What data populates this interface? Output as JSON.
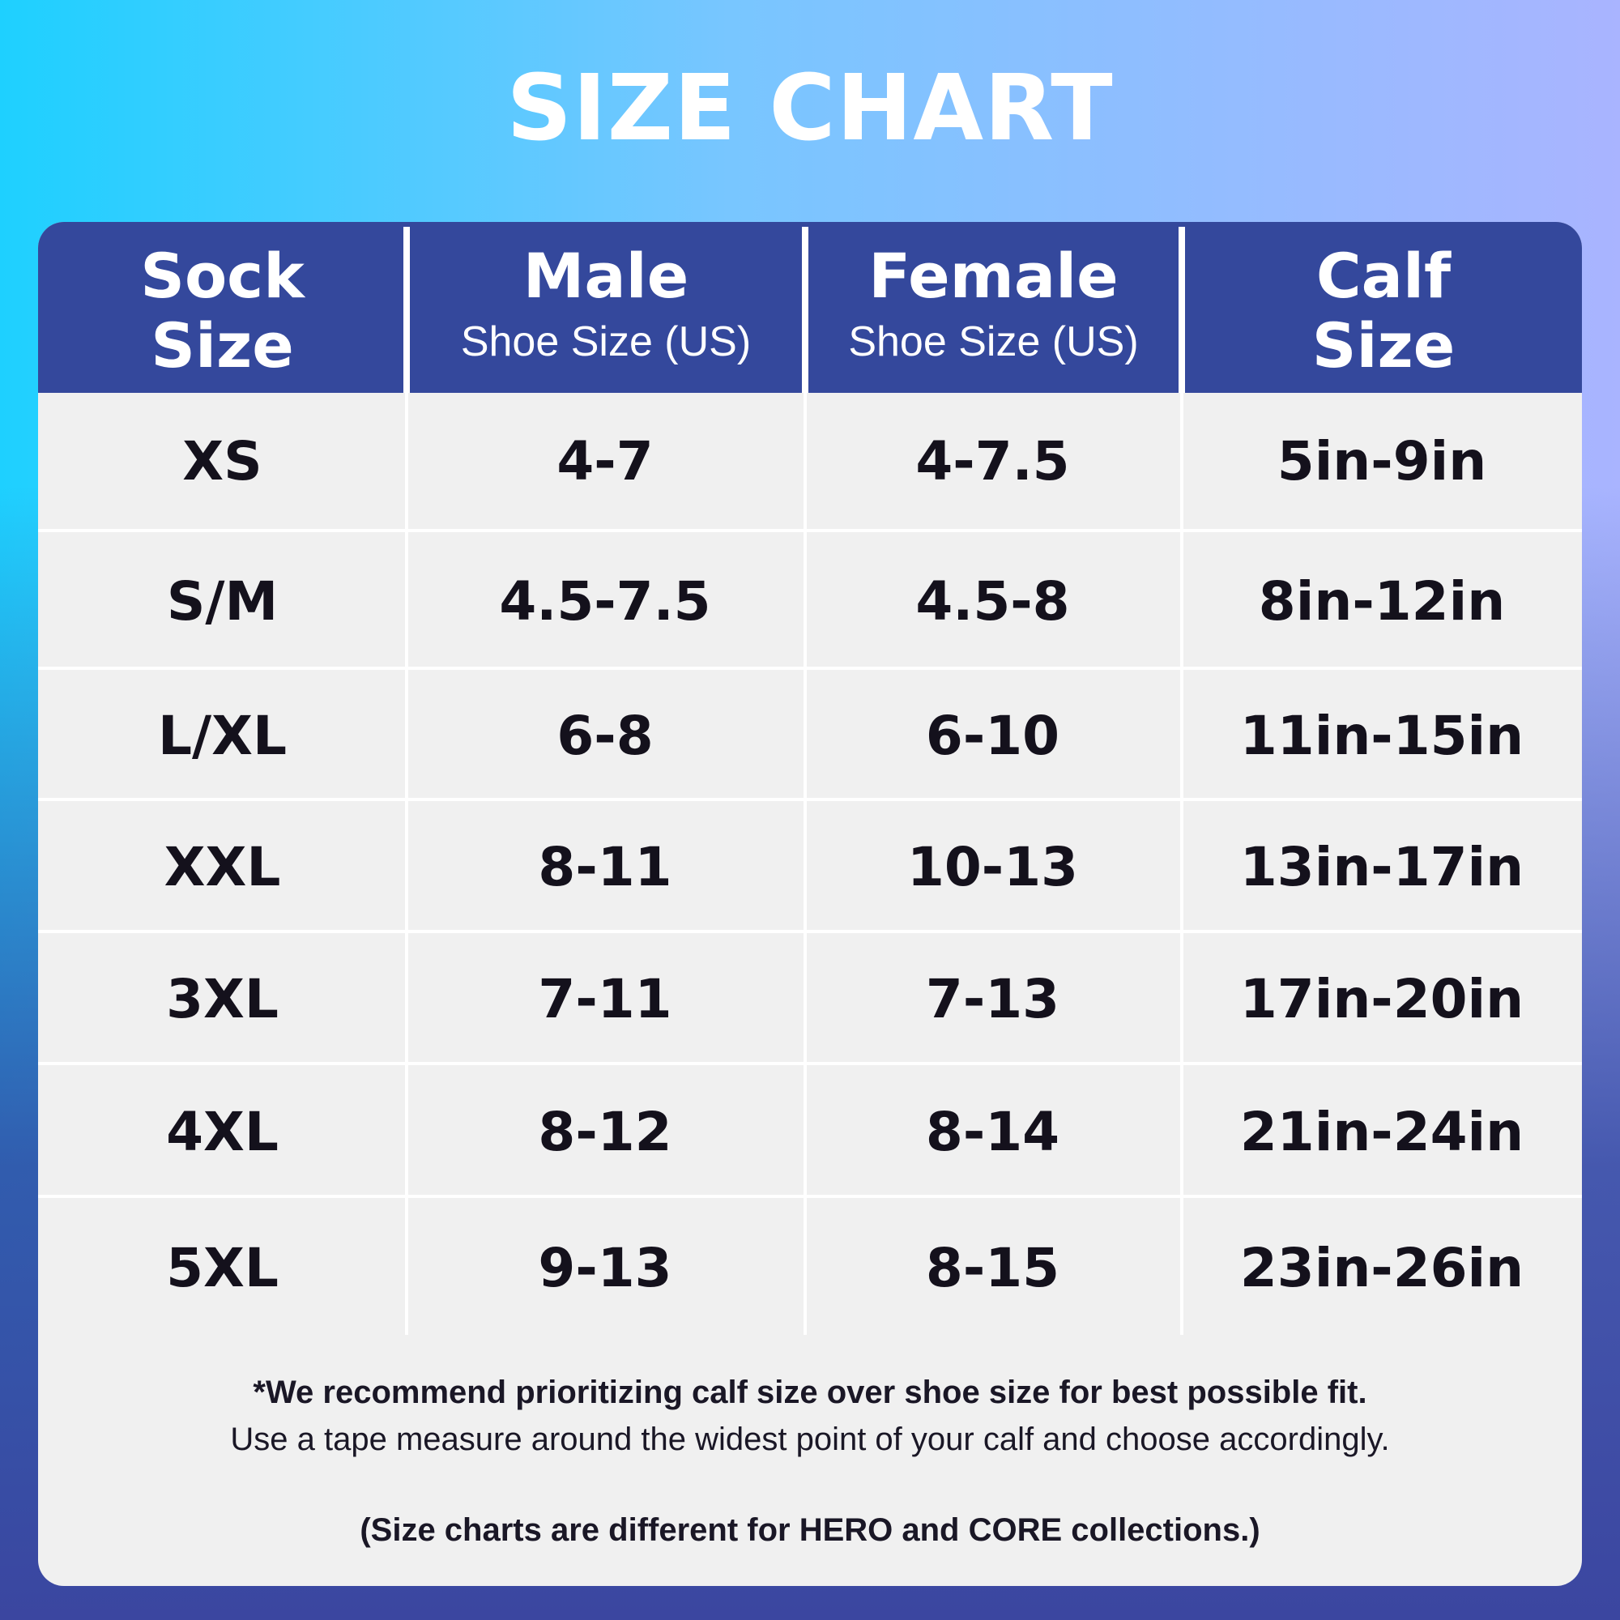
{
  "title": "SIZE CHART",
  "chart_data": {
    "type": "table",
    "columns": [
      {
        "title": "Sock Size",
        "subtitle": ""
      },
      {
        "title": "Male",
        "subtitle": "Shoe Size (US)"
      },
      {
        "title": "Female",
        "subtitle": "Shoe Size (US)"
      },
      {
        "title": "Calf Size",
        "subtitle": ""
      }
    ],
    "rows": [
      [
        "XS",
        "4-7",
        "4-7.5",
        "5in-9in"
      ],
      [
        "S/M",
        "4.5-7.5",
        "4.5-8",
        "8in-12in"
      ],
      [
        "L/XL",
        "6-8",
        "6-10",
        "11in-15in"
      ],
      [
        "XXL",
        "8-11",
        "10-13",
        "13in-17in"
      ],
      [
        "3XL",
        "7-11",
        "7-13",
        "17in-20in"
      ],
      [
        "4XL",
        "8-12",
        "8-14",
        "21in-24in"
      ],
      [
        "5XL",
        "9-13",
        "8-15",
        "23in-26in"
      ]
    ]
  },
  "header": {
    "col1_line1": "Sock",
    "col1_line2": "Size",
    "col2_title": "Male",
    "col2_sub": "Shoe Size (US)",
    "col3_title": "Female",
    "col3_sub": "Shoe Size (US)",
    "col4_line1": "Calf",
    "col4_line2": "Size"
  },
  "notes": {
    "line1": "*We recommend prioritizing calf size over shoe size for best possible fit.",
    "line2": "Use a tape measure around the widest point of your calf and choose accordingly.",
    "line3": "(Size charts are different for HERO and CORE collections.)"
  },
  "colors": {
    "header_bg": "#34489c",
    "table_bg": "#f0f0f0",
    "text": "#14111c"
  }
}
